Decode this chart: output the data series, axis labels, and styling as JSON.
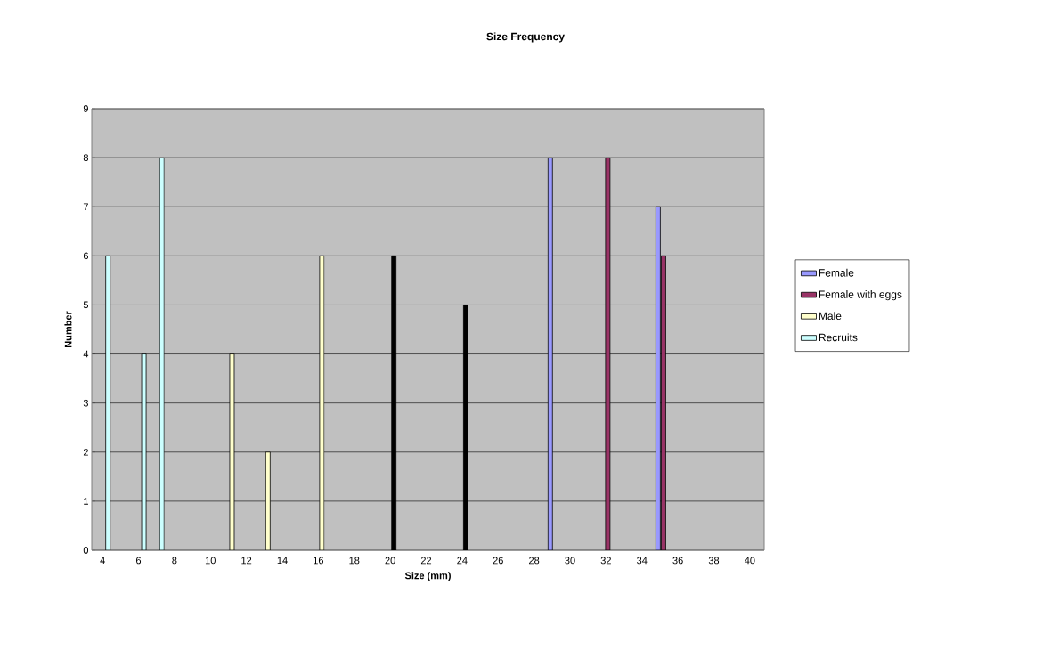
{
  "chart_data": {
    "type": "bar",
    "title": "Size  Frequency",
    "xlabel": "Size   (mm)",
    "ylabel": "Number",
    "xlim": [
      3.4,
      40.8
    ],
    "xticks": [
      4,
      6,
      8,
      10,
      12,
      14,
      16,
      18,
      20,
      22,
      24,
      26,
      28,
      30,
      32,
      34,
      36,
      38,
      40
    ],
    "ylim": [
      0,
      9
    ],
    "yticks": [
      0,
      1,
      2,
      3,
      4,
      5,
      6,
      7,
      8,
      9
    ],
    "grid": "y",
    "legend": "right",
    "series": [
      {
        "name": "Female",
        "color": "#9999ff",
        "x": [
          28.9,
          34.9
        ],
        "values": [
          8,
          7
        ]
      },
      {
        "name": "Female with eggs",
        "color": "#993366",
        "x": [
          32.1,
          35.2
        ],
        "values": [
          8,
          6
        ]
      },
      {
        "name": "Male",
        "color": "#ffffcc",
        "x": [
          11.2,
          13.2,
          16.2
        ],
        "values": [
          4,
          2,
          6
        ]
      },
      {
        "name": "Recruits",
        "color": "#ccffff",
        "x": [
          4.3,
          6.3,
          7.3
        ],
        "values": [
          6,
          4,
          8
        ]
      },
      {
        "color": "#000000",
        "x": [
          20.2,
          24.2
        ],
        "values": [
          6,
          5
        ]
      }
    ]
  }
}
